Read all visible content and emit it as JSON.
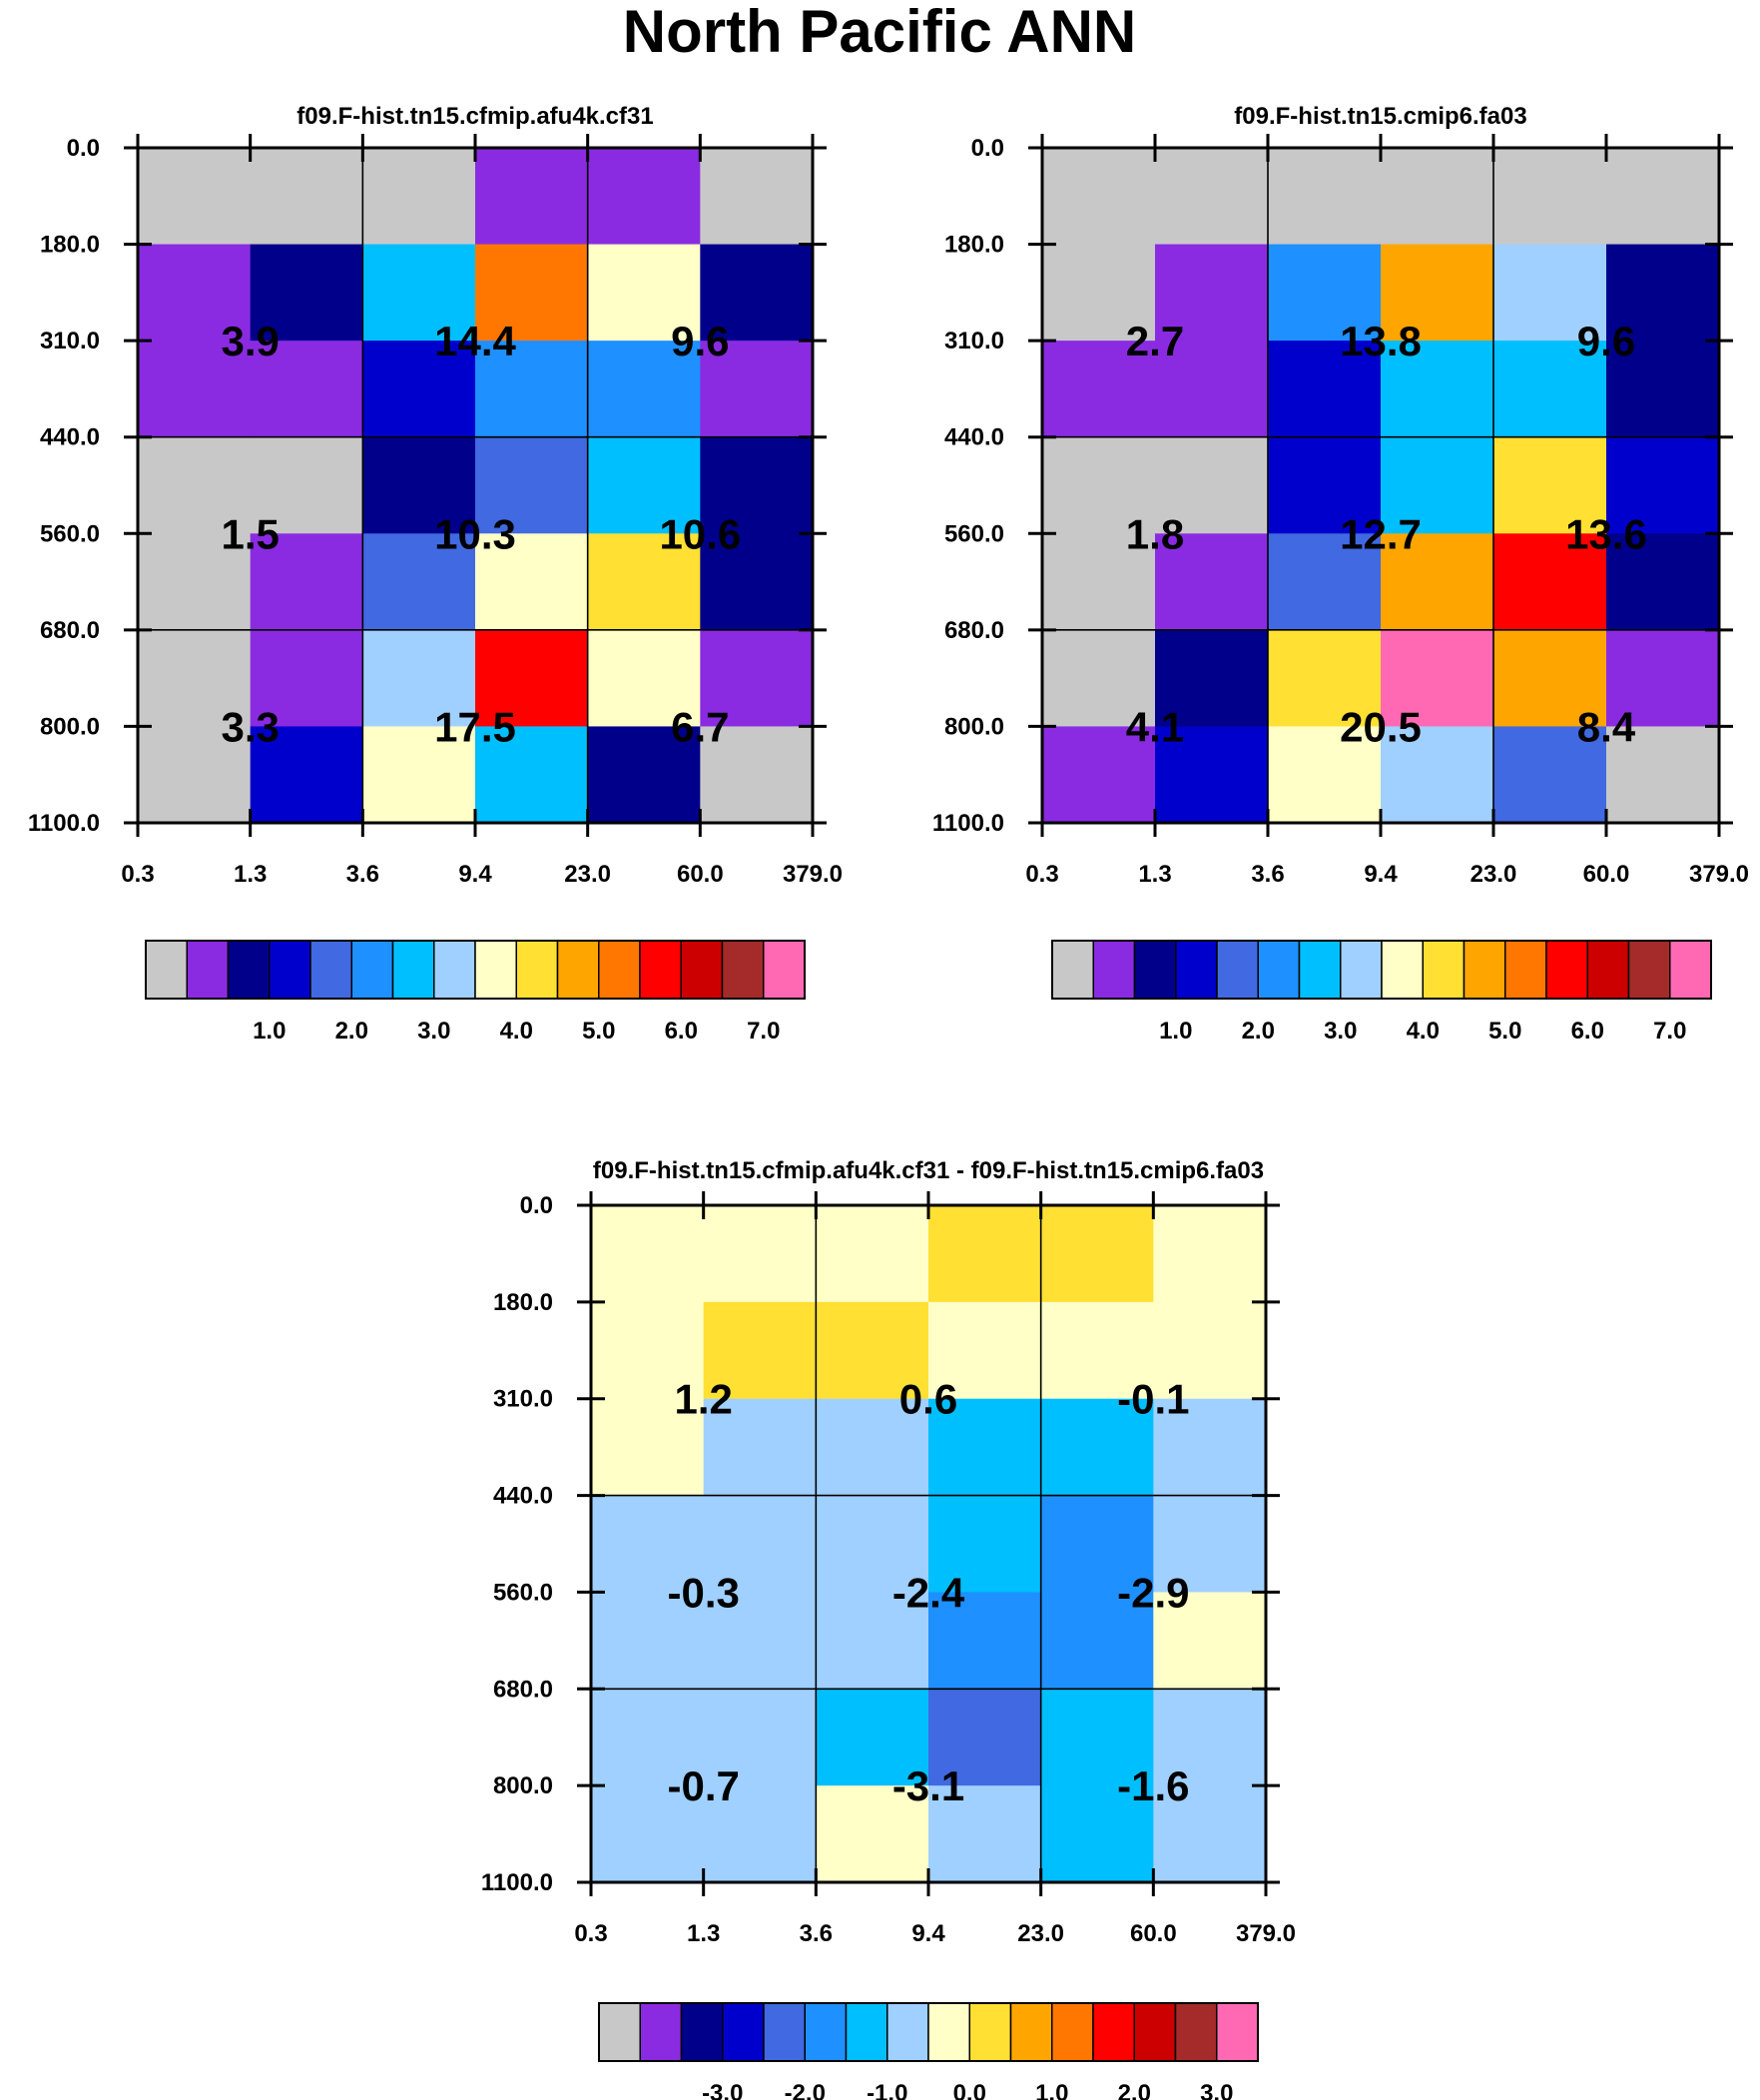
{
  "figure_title": "North Pacific ANN",
  "palette": [
    "#c8c8c8",
    "#8a2be2",
    "#00008b",
    "#0000cd",
    "#4169e1",
    "#1e90ff",
    "#00bfff",
    "#a0d0ff",
    "#ffffc8",
    "#ffe033",
    "#ffa500",
    "#ff7700",
    "#ff0000",
    "#cc0000",
    "#a52a2a",
    "#ff69b4"
  ],
  "chart_data": [
    {
      "type": "heatmap",
      "title": "f09.F-hist.tn15.cfmip.afu4k.cf31",
      "x_ticks": [
        "0.3",
        "1.3",
        "3.6",
        "9.4",
        "23.0",
        "60.0",
        "379.0"
      ],
      "y_ticks": [
        "0.0",
        "180.0",
        "310.0",
        "440.0",
        "560.0",
        "680.0",
        "800.0",
        "1100.0"
      ],
      "cell_colors": [
        [
          0,
          0,
          0,
          1,
          1,
          0
        ],
        [
          1,
          2,
          6,
          11,
          8,
          2
        ],
        [
          1,
          1,
          3,
          5,
          5,
          1
        ],
        [
          0,
          0,
          2,
          4,
          6,
          2
        ],
        [
          0,
          1,
          4,
          8,
          9,
          2
        ],
        [
          0,
          1,
          7,
          12,
          8,
          1
        ],
        [
          0,
          3,
          8,
          6,
          2,
          0
        ]
      ],
      "block_values": [
        [
          "3.9",
          "14.4",
          "9.6"
        ],
        [
          "1.5",
          "10.3",
          "10.6"
        ],
        [
          "3.3",
          "17.5",
          "6.7"
        ]
      ],
      "colorbar": {
        "colors": [
          0,
          1,
          2,
          3,
          4,
          5,
          6,
          7,
          8,
          9,
          10,
          11,
          12,
          13,
          14,
          15
        ],
        "labels": [
          "1.0",
          "2.0",
          "3.0",
          "4.0",
          "5.0",
          "6.0",
          "7.0"
        ]
      }
    },
    {
      "type": "heatmap",
      "title": "f09.F-hist.tn15.cmip6.fa03",
      "x_ticks": [
        "0.3",
        "1.3",
        "3.6",
        "9.4",
        "23.0",
        "60.0",
        "379.0"
      ],
      "y_ticks": [
        "0.0",
        "180.0",
        "310.0",
        "440.0",
        "560.0",
        "680.0",
        "800.0",
        "1100.0"
      ],
      "cell_colors": [
        [
          0,
          0,
          0,
          0,
          0,
          0
        ],
        [
          0,
          1,
          5,
          10,
          7,
          2
        ],
        [
          1,
          1,
          3,
          6,
          6,
          2
        ],
        [
          0,
          0,
          3,
          6,
          9,
          3
        ],
        [
          0,
          1,
          4,
          10,
          12,
          2
        ],
        [
          0,
          2,
          9,
          15,
          10,
          1
        ],
        [
          1,
          3,
          8,
          7,
          4,
          0
        ]
      ],
      "block_values": [
        [
          "2.7",
          "13.8",
          "9.6"
        ],
        [
          "1.8",
          "12.7",
          "13.6"
        ],
        [
          "4.1",
          "20.5",
          "8.4"
        ]
      ],
      "colorbar": {
        "colors": [
          0,
          1,
          2,
          3,
          4,
          5,
          6,
          7,
          8,
          9,
          10,
          11,
          12,
          13,
          14,
          15
        ],
        "labels": [
          "1.0",
          "2.0",
          "3.0",
          "4.0",
          "5.0",
          "6.0",
          "7.0"
        ]
      }
    },
    {
      "type": "heatmap",
      "title": "f09.F-hist.tn15.cfmip.afu4k.cf31 - f09.F-hist.tn15.cmip6.fa03",
      "x_ticks": [
        "0.3",
        "1.3",
        "3.6",
        "9.4",
        "23.0",
        "60.0",
        "379.0"
      ],
      "y_ticks": [
        "0.0",
        "180.0",
        "310.0",
        "440.0",
        "560.0",
        "680.0",
        "800.0",
        "1100.0"
      ],
      "cell_colors": [
        [
          8,
          8,
          8,
          9,
          9,
          8
        ],
        [
          8,
          9,
          9,
          8,
          8,
          8
        ],
        [
          8,
          7,
          7,
          6,
          6,
          7
        ],
        [
          7,
          7,
          7,
          6,
          5,
          7
        ],
        [
          7,
          7,
          7,
          5,
          5,
          8
        ],
        [
          7,
          7,
          6,
          4,
          6,
          7
        ],
        [
          7,
          7,
          8,
          7,
          6,
          7
        ]
      ],
      "block_values": [
        [
          "1.2",
          "0.6",
          "-0.1"
        ],
        [
          "-0.3",
          "-2.4",
          "-2.9"
        ],
        [
          "-0.7",
          "-3.1",
          "-1.6"
        ]
      ],
      "colorbar": {
        "colors": [
          0,
          1,
          2,
          3,
          4,
          5,
          6,
          7,
          8,
          9,
          10,
          11,
          12,
          13,
          14,
          15
        ],
        "labels": [
          "-3.0",
          "-2.0",
          "-1.0",
          "0.0",
          "1.0",
          "2.0",
          "3.0"
        ]
      }
    }
  ]
}
